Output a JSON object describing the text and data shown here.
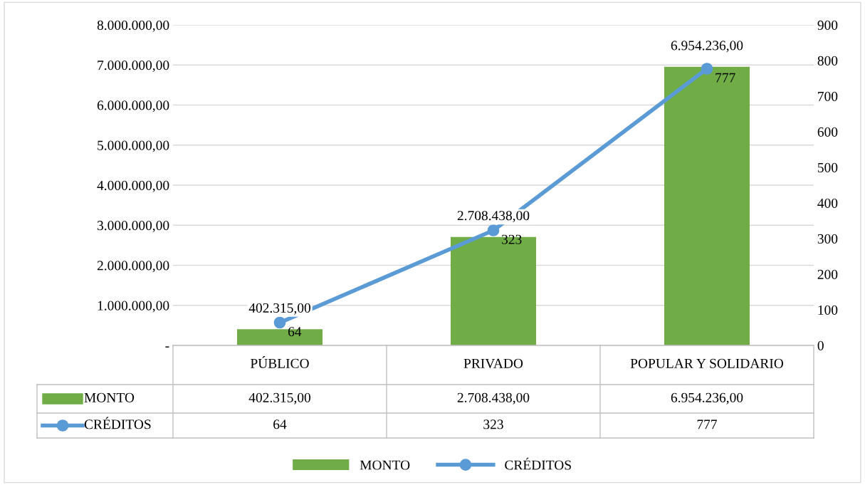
{
  "chart_data": {
    "type": "bar",
    "categories": [
      "PÚBLICO",
      "PRIVADO",
      "POPULAR Y SOLIDARIO"
    ],
    "series": [
      {
        "name": "MONTO",
        "color": "#70ad47",
        "values": [
          402315,
          2708438,
          6954236
        ],
        "value_labels": [
          "402.315,00",
          "2.708.438,00",
          "6.954.236,00"
        ]
      },
      {
        "name": "CRÉDITOS",
        "type": "line",
        "axis": "y2",
        "color": "#5b9bd5",
        "values": [
          64,
          323,
          777
        ],
        "value_labels": [
          "64",
          "323",
          "777"
        ],
        "marker": "circle"
      }
    ],
    "ylim": [
      0,
      8000000
    ],
    "yticks": [
      {
        "value": 0,
        "label": "-"
      },
      {
        "value": 1000000,
        "label": "1.000.000,00"
      },
      {
        "value": 2000000,
        "label": "2.000.000,00"
      },
      {
        "value": 3000000,
        "label": "3.000.000,00"
      },
      {
        "value": 4000000,
        "label": "4.000.000,00"
      },
      {
        "value": 5000000,
        "label": "5.000.000,00"
      },
      {
        "value": 6000000,
        "label": "6.000.000,00"
      },
      {
        "value": 7000000,
        "label": "7.000.000,00"
      },
      {
        "value": 8000000,
        "label": "8.000.000,00"
      }
    ],
    "y2lim": [
      0,
      900
    ],
    "y2ticks": [
      0,
      100,
      200,
      300,
      400,
      500,
      600,
      700,
      800,
      900
    ],
    "grid": "y",
    "legend": "bottom"
  }
}
